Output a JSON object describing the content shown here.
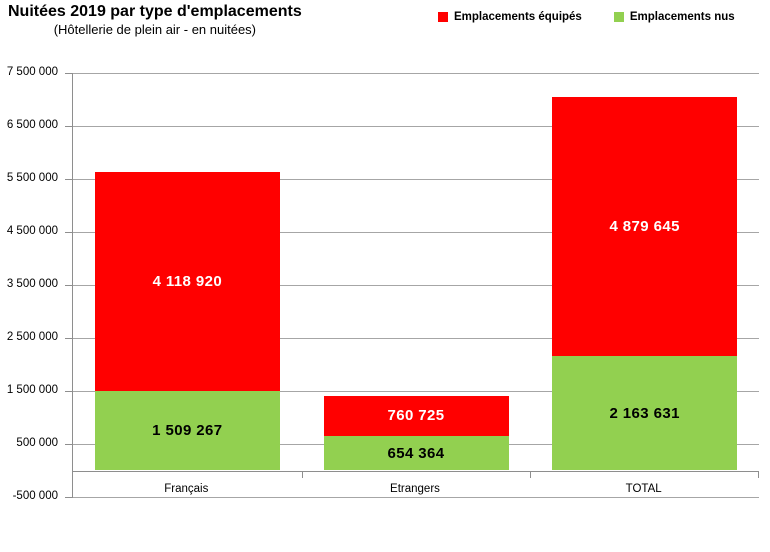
{
  "header": {
    "title": "Nuitées 2019 par type d'emplacements",
    "subtitle": "(Hôtellerie de plein air - en nuitées)"
  },
  "legend": {
    "items": [
      {
        "label": "Emplacements équipés",
        "color": "#ff0000"
      },
      {
        "label": "Emplacements nus",
        "color": "#92d050"
      }
    ]
  },
  "chart_data": {
    "type": "bar",
    "stacked": true,
    "title": "Nuitées 2019 par type d'emplacements",
    "subtitle": "(Hôtellerie de plein air - en nuitées)",
    "categories": [
      "Français",
      "Etrangers",
      "TOTAL"
    ],
    "series": [
      {
        "name": "Emplacements nus",
        "color": "#92d050",
        "label_color": "#000000",
        "values": [
          1509267,
          654364,
          2163631
        ],
        "labels": [
          "1 509 267",
          "654 364",
          "2 163 631"
        ]
      },
      {
        "name": "Emplacements équipés",
        "color": "#ff0000",
        "label_color": "#ffffff",
        "values": [
          4118920,
          760725,
          4879645
        ],
        "labels": [
          "4 118 920",
          "760 725",
          "4 879 645"
        ]
      }
    ],
    "ylim": [
      -500000,
      7500000
    ],
    "ytick_step": 1000000,
    "yticks": [
      7500000,
      6500000,
      5500000,
      4500000,
      3500000,
      2500000,
      1500000,
      500000,
      -500000
    ],
    "ytick_labels": [
      "7 500 000",
      "6 500 000",
      "5 500 000",
      "4 500 000",
      "3 500 000",
      "2 500 000",
      "1 500 000",
      "500 000",
      "-500 000"
    ],
    "grid": true,
    "legend_position": "top-right",
    "colors": {
      "grid": "#a6a6a6",
      "axis": "#8e8e8e"
    }
  }
}
